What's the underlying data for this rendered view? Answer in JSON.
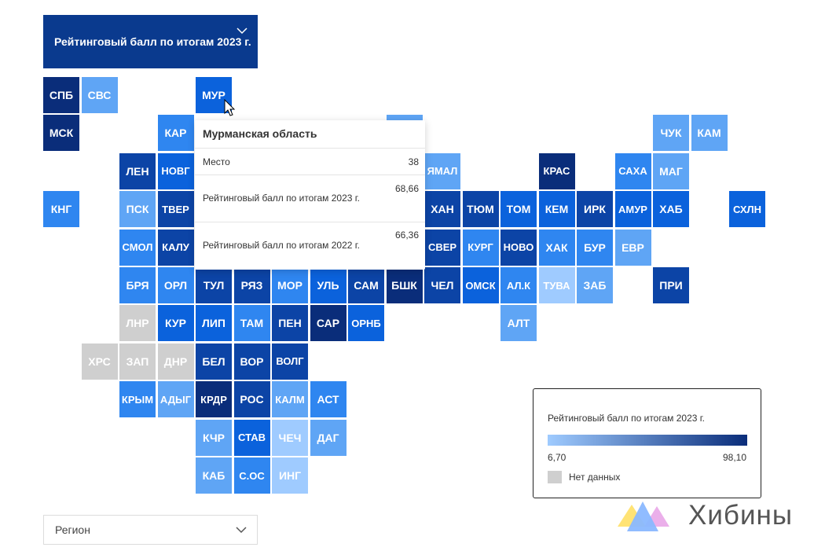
{
  "header": {
    "metric_dropdown_label": "Рейтинговый балл по итогам 2023 г."
  },
  "colors": {
    "c1": "#0a2d7a",
    "c2": "#0c44a6",
    "c3": "#0b62dc",
    "c4": "#2f86f0",
    "c5": "#5fa5f5",
    "c6": "#9fcbff",
    "nodata": "#cfcfcf"
  },
  "tiles": [
    {
      "label": "СПБ",
      "col": 0,
      "row": 0,
      "color": "c1"
    },
    {
      "label": "СВС",
      "col": 1,
      "row": 0,
      "color": "c5"
    },
    {
      "label": "МУР",
      "col": 4,
      "row": 0,
      "color": "c3"
    },
    {
      "label": "МСК",
      "col": 0,
      "row": 1,
      "color": "c1"
    },
    {
      "label": "КАР",
      "col": 3,
      "row": 1,
      "color": "c4"
    },
    {
      "label": "",
      "col": 9,
      "row": 1,
      "color": "c5"
    },
    {
      "label": "ЧУК",
      "col": 16,
      "row": 1,
      "color": "c5"
    },
    {
      "label": "КАМ",
      "col": 17,
      "row": 1,
      "color": "c5"
    },
    {
      "label": "ЛЕН",
      "col": 2,
      "row": 2,
      "color": "c2"
    },
    {
      "label": "НОВГ",
      "col": 3,
      "row": 2,
      "color": "c3"
    },
    {
      "label": "ЯМАЛ",
      "col": 10,
      "row": 2,
      "color": "c5"
    },
    {
      "label": "КРАС",
      "col": 13,
      "row": 2,
      "color": "c1"
    },
    {
      "label": "САХА",
      "col": 15,
      "row": 2,
      "color": "c4"
    },
    {
      "label": "МАГ",
      "col": 16,
      "row": 2,
      "color": "c5"
    },
    {
      "label": "КНГ",
      "col": 0,
      "row": 3,
      "color": "c4"
    },
    {
      "label": "ПСК",
      "col": 2,
      "row": 3,
      "color": "c5"
    },
    {
      "label": "ТВЕР",
      "col": 3,
      "row": 3,
      "color": "c2"
    },
    {
      "label": "ХАН",
      "col": 10,
      "row": 3,
      "color": "c2"
    },
    {
      "label": "ТЮМ",
      "col": 11,
      "row": 3,
      "color": "c2"
    },
    {
      "label": "ТОМ",
      "col": 12,
      "row": 3,
      "color": "c3"
    },
    {
      "label": "КЕМ",
      "col": 13,
      "row": 3,
      "color": "c3"
    },
    {
      "label": "ИРК",
      "col": 14,
      "row": 3,
      "color": "c2"
    },
    {
      "label": "АМУР",
      "col": 15,
      "row": 3,
      "color": "c3"
    },
    {
      "label": "ХАБ",
      "col": 16,
      "row": 3,
      "color": "c3"
    },
    {
      "label": "СХЛН",
      "col": 18,
      "row": 3,
      "color": "c3"
    },
    {
      "label": "СМОЛ",
      "col": 2,
      "row": 4,
      "color": "c4"
    },
    {
      "label": "КАЛУ",
      "col": 3,
      "row": 4,
      "color": "c2"
    },
    {
      "label": "СВЕР",
      "col": 10,
      "row": 4,
      "color": "c2"
    },
    {
      "label": "КУРГ",
      "col": 11,
      "row": 4,
      "color": "c4"
    },
    {
      "label": "НОВО",
      "col": 12,
      "row": 4,
      "color": "c2"
    },
    {
      "label": "ХАК",
      "col": 13,
      "row": 4,
      "color": "c4"
    },
    {
      "label": "БУР",
      "col": 14,
      "row": 4,
      "color": "c4"
    },
    {
      "label": "ЕВР",
      "col": 15,
      "row": 4,
      "color": "c5"
    },
    {
      "label": "БРЯ",
      "col": 2,
      "row": 5,
      "color": "c4"
    },
    {
      "label": "ОРЛ",
      "col": 3,
      "row": 5,
      "color": "c4"
    },
    {
      "label": "ТУЛ",
      "col": 4,
      "row": 5,
      "color": "c2"
    },
    {
      "label": "РЯЗ",
      "col": 5,
      "row": 5,
      "color": "c2"
    },
    {
      "label": "МОР",
      "col": 6,
      "row": 5,
      "color": "c4"
    },
    {
      "label": "УЛЬ",
      "col": 7,
      "row": 5,
      "color": "c3"
    },
    {
      "label": "САМ",
      "col": 8,
      "row": 5,
      "color": "c2"
    },
    {
      "label": "БШК",
      "col": 9,
      "row": 5,
      "color": "c1"
    },
    {
      "label": "ЧЕЛ",
      "col": 10,
      "row": 5,
      "color": "c2"
    },
    {
      "label": "ОМСК",
      "col": 11,
      "row": 5,
      "color": "c3"
    },
    {
      "label": "АЛ.К",
      "col": 12,
      "row": 5,
      "color": "c4"
    },
    {
      "label": "ТУВА",
      "col": 13,
      "row": 5,
      "color": "c6"
    },
    {
      "label": "ЗАБ",
      "col": 14,
      "row": 5,
      "color": "c5"
    },
    {
      "label": "ПРИ",
      "col": 16,
      "row": 5,
      "color": "c2"
    },
    {
      "label": "ЛНР",
      "col": 2,
      "row": 6,
      "color": "nodata"
    },
    {
      "label": "КУР",
      "col": 3,
      "row": 6,
      "color": "c3"
    },
    {
      "label": "ЛИП",
      "col": 4,
      "row": 6,
      "color": "c3"
    },
    {
      "label": "ТАМ",
      "col": 5,
      "row": 6,
      "color": "c4"
    },
    {
      "label": "ПЕН",
      "col": 6,
      "row": 6,
      "color": "c2"
    },
    {
      "label": "САР",
      "col": 7,
      "row": 6,
      "color": "c1"
    },
    {
      "label": "ОРНБ",
      "col": 8,
      "row": 6,
      "color": "c3"
    },
    {
      "label": "АЛТ",
      "col": 12,
      "row": 6,
      "color": "c5"
    },
    {
      "label": "ХРС",
      "col": 1,
      "row": 7,
      "color": "nodata"
    },
    {
      "label": "ЗАП",
      "col": 2,
      "row": 7,
      "color": "nodata"
    },
    {
      "label": "ДНР",
      "col": 3,
      "row": 7,
      "color": "nodata"
    },
    {
      "label": "БЕЛ",
      "col": 4,
      "row": 7,
      "color": "c2"
    },
    {
      "label": "ВОР",
      "col": 5,
      "row": 7,
      "color": "c2"
    },
    {
      "label": "ВОЛГ",
      "col": 6,
      "row": 7,
      "color": "c2"
    },
    {
      "label": "КРЫМ",
      "col": 2,
      "row": 8,
      "color": "c4"
    },
    {
      "label": "АДЫГ",
      "col": 3,
      "row": 8,
      "color": "c5"
    },
    {
      "label": "КРДР",
      "col": 4,
      "row": 8,
      "color": "c1"
    },
    {
      "label": "РОС",
      "col": 5,
      "row": 8,
      "color": "c2"
    },
    {
      "label": "КАЛМ",
      "col": 6,
      "row": 8,
      "color": "c5"
    },
    {
      "label": "АСТ",
      "col": 7,
      "row": 8,
      "color": "c4"
    },
    {
      "label": "КЧР",
      "col": 4,
      "row": 9,
      "color": "c5"
    },
    {
      "label": "СТАВ",
      "col": 5,
      "row": 9,
      "color": "c3"
    },
    {
      "label": "ЧЕЧ",
      "col": 6,
      "row": 9,
      "color": "c6"
    },
    {
      "label": "ДАГ",
      "col": 7,
      "row": 9,
      "color": "c5"
    },
    {
      "label": "КАБ",
      "col": 4,
      "row": 10,
      "color": "c5"
    },
    {
      "label": "С.ОС",
      "col": 5,
      "row": 10,
      "color": "c4"
    },
    {
      "label": "ИНГ",
      "col": 6,
      "row": 10,
      "color": "c6"
    }
  ],
  "tooltip": {
    "title": "Мурманская область",
    "rows": [
      {
        "label": "Место",
        "value": "38"
      },
      {
        "label": "Рейтинговый балл по итогам 2023 г.",
        "value": "68,66"
      },
      {
        "label": "Рейтинговый балл по итогам 2022 г.",
        "value": "66,36"
      }
    ]
  },
  "legend": {
    "title": "Рейтинговый балл по итогам 2023 г.",
    "min": "6,70",
    "max": "98,10",
    "nodata_label": "Нет данных"
  },
  "region_dropdown": {
    "placeholder": "Регион"
  },
  "logo": {
    "text": "Хибины"
  }
}
